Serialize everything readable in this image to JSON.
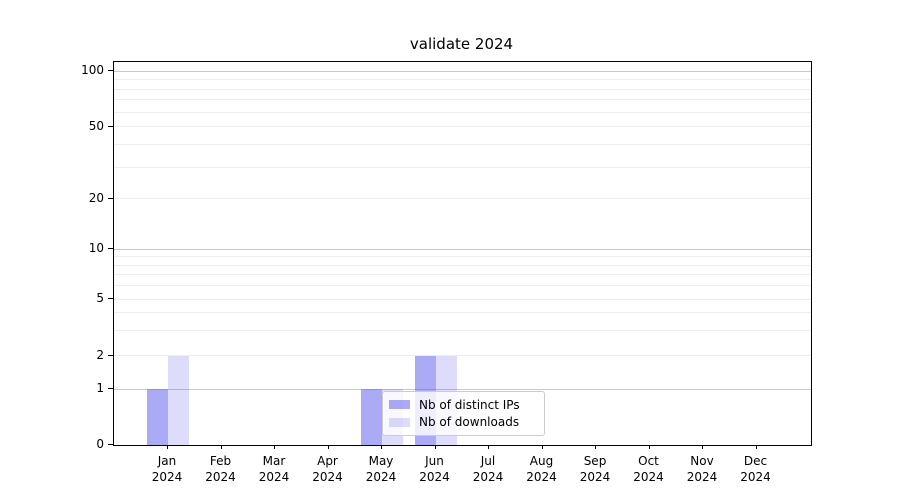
{
  "chart_data": {
    "type": "bar",
    "title": "validate 2024",
    "categories": [
      {
        "month": "Jan",
        "year": "2024"
      },
      {
        "month": "Feb",
        "year": "2024"
      },
      {
        "month": "Mar",
        "year": "2024"
      },
      {
        "month": "Apr",
        "year": "2024"
      },
      {
        "month": "May",
        "year": "2024"
      },
      {
        "month": "Jun",
        "year": "2024"
      },
      {
        "month": "Jul",
        "year": "2024"
      },
      {
        "month": "Aug",
        "year": "2024"
      },
      {
        "month": "Sep",
        "year": "2024"
      },
      {
        "month": "Oct",
        "year": "2024"
      },
      {
        "month": "Nov",
        "year": "2024"
      },
      {
        "month": "Dec",
        "year": "2024"
      }
    ],
    "series": [
      {
        "name": "Nb of distinct IPs",
        "color": "rgba(85,85,235,0.5)",
        "values": [
          1,
          0,
          0,
          0,
          1,
          2,
          0,
          0,
          0,
          0,
          0,
          0
        ]
      },
      {
        "name": "Nb of downloads",
        "color": "rgba(85,85,235,0.2)",
        "values": [
          2,
          0,
          0,
          0,
          1,
          2,
          0,
          0,
          0,
          0,
          0,
          0
        ]
      }
    ],
    "y_axis": {
      "ticks": [
        0,
        1,
        2,
        5,
        10,
        20,
        50,
        100
      ],
      "scale": "log-like with zero baseline"
    },
    "grid": {
      "major_values": [
        1,
        10,
        100
      ],
      "minor_values": [
        2,
        3,
        4,
        5,
        6,
        7,
        8,
        9,
        20,
        30,
        40,
        50,
        60,
        70,
        80,
        90
      ],
      "major_color": "#c9c9c9",
      "minor_color": "#ededed"
    },
    "legend": {
      "location": "inside-lower-center"
    }
  }
}
